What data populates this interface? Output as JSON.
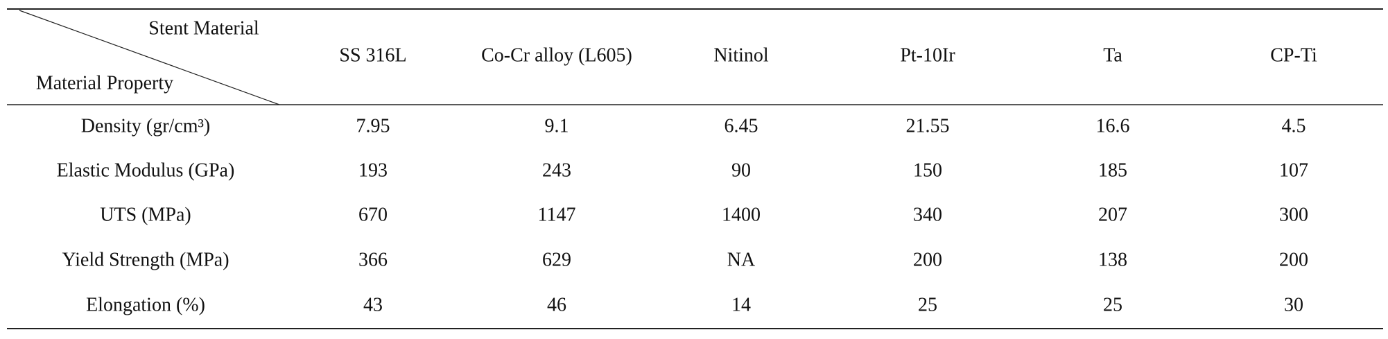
{
  "table": {
    "corner": {
      "top": "Stent Material",
      "bottom": "Material Property"
    },
    "columns": [
      "SS 316L",
      "Co-Cr alloy (L605)",
      "Nitinol",
      "Pt-10Ir",
      "Ta",
      "CP-Ti"
    ],
    "rows": [
      [
        "Density (gr/cm³)",
        "7.95",
        "9.1",
        "6.45",
        "21.55",
        "16.6",
        "4.5"
      ],
      [
        "Elastic Modulus (GPa)",
        "193",
        "243",
        "90",
        "150",
        "185",
        "107"
      ],
      [
        "UTS (MPa)",
        "670",
        "1147",
        "1400",
        "340",
        "207",
        "300"
      ],
      [
        "Yield Strength (MPa)",
        "366",
        "629",
        "NA",
        "200",
        "138",
        "200"
      ],
      [
        "Elongation (%)",
        "43",
        "46",
        "14",
        "25",
        "25",
        "30"
      ]
    ]
  }
}
